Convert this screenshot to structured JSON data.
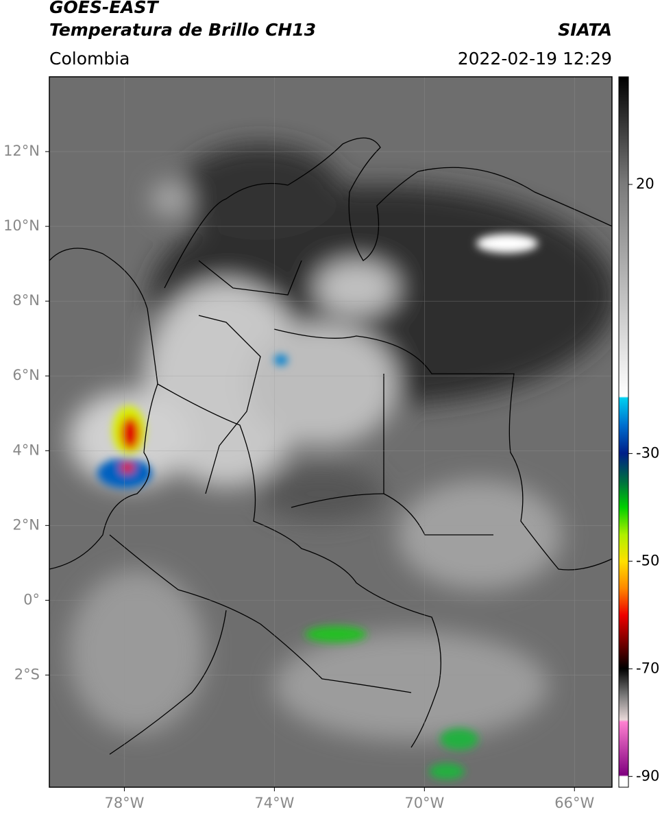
{
  "header": {
    "title_line1": "GOES-EAST",
    "title_line2": "Temperatura de Brillo CH13",
    "source": "SIATA",
    "region": "Colombia",
    "datetime": "2022-02-19 12:29"
  },
  "map": {
    "lon_lim": [
      -80,
      -65
    ],
    "lat_lim": [
      -5,
      14
    ],
    "lat_ticks": [
      {
        "value": 12,
        "label": "12°N"
      },
      {
        "value": 10,
        "label": "10°N"
      },
      {
        "value": 8,
        "label": "8°N"
      },
      {
        "value": 6,
        "label": "6°N"
      },
      {
        "value": 4,
        "label": "4°N"
      },
      {
        "value": 2,
        "label": "2°N"
      },
      {
        "value": 0,
        "label": "0°"
      },
      {
        "value": -2,
        "label": "2°S"
      }
    ],
    "lon_ticks": [
      {
        "value": -78,
        "label": "78°W"
      },
      {
        "value": -74,
        "label": "74°W"
      },
      {
        "value": -70,
        "label": "70°W"
      },
      {
        "value": -66,
        "label": "66°W"
      }
    ]
  },
  "colorbar": {
    "lim": [
      -92,
      40
    ],
    "ticks": [
      20,
      -30,
      -50,
      -70,
      -90
    ]
  }
}
